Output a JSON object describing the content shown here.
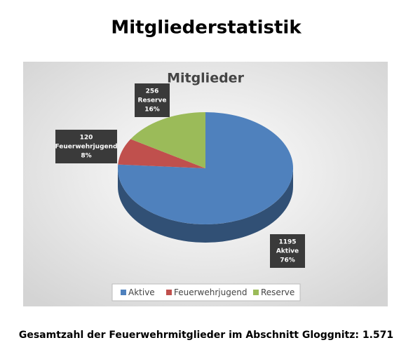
{
  "page_title": "Mitgliederstatistik",
  "chart_data": {
    "type": "pie",
    "title": "Mitglieder",
    "categories": [
      "Aktive",
      "Feuerwehrjugend",
      "Reserve"
    ],
    "values": [
      1195,
      120,
      256
    ],
    "percent_labels": [
      "76%",
      "8%",
      "16%"
    ],
    "colors": [
      "#4f81bd",
      "#c0504d",
      "#9bbb59"
    ],
    "legend": "bottom"
  },
  "footer": "Gesamtzahl der Feuerwehrmitglieder im Abschnitt Gloggnitz: 1.571"
}
